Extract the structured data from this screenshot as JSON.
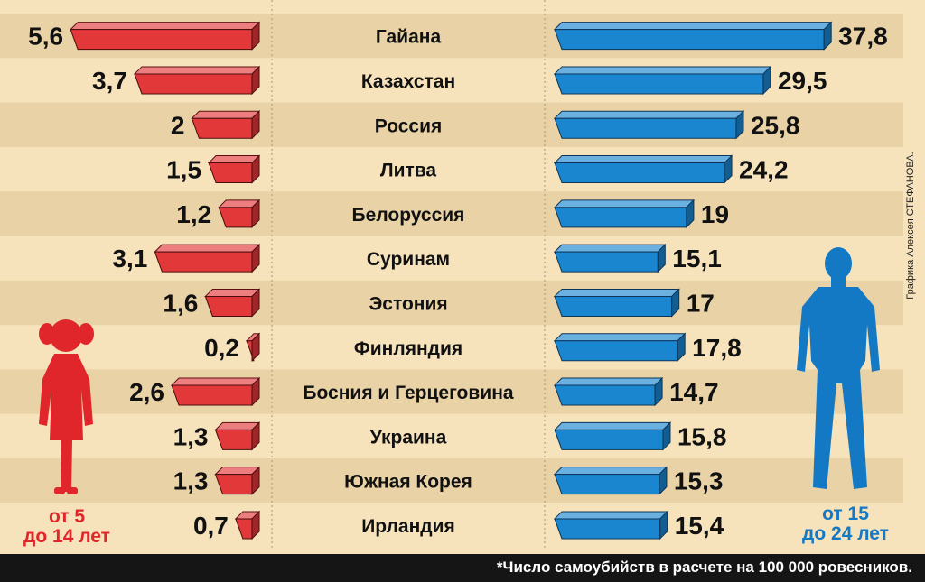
{
  "colors": {
    "background": "#f6e2bb",
    "stripe": "#e8d2a6",
    "left_bar": "#e3383a",
    "right_bar": "#1a86d0",
    "footer": "#151515"
  },
  "chart_data": {
    "type": "bar",
    "categories": [
      "Гайана",
      "Казахстан",
      "Россия",
      "Литва",
      "Белоруссия",
      "Суринам",
      "Эстония",
      "Финляндия",
      "Босния и Герцеговина",
      "Украина",
      "Южная Корея",
      "Ирландия"
    ],
    "series": [
      {
        "name": "от 5 до 14 лет",
        "values": [
          5.6,
          3.7,
          2,
          1.5,
          1.2,
          3.1,
          1.6,
          0.2,
          2.6,
          1.3,
          1.3,
          0.7
        ],
        "labels": [
          "5,6",
          "3,7",
          "2",
          "1,5",
          "1,2",
          "3,1",
          "1,6",
          "0,2",
          "2,6",
          "1,3",
          "1,3",
          "0,7"
        ]
      },
      {
        "name": "от 15 до 24 лет",
        "values": [
          37.8,
          29.5,
          25.8,
          24.2,
          19,
          15.1,
          17,
          17.8,
          14.7,
          15.8,
          15.3,
          15.4
        ],
        "labels": [
          "37,8",
          "29,5",
          "25,8",
          "24,2",
          "19",
          "15,1",
          "17",
          "17,8",
          "14,7",
          "15,8",
          "15,3",
          "15,4"
        ]
      }
    ],
    "orientation": "horizontal, mirrored (left series grows leftward, right series grows rightward)"
  },
  "legend": {
    "left_line1": "от 5",
    "left_line2": "до 14 лет",
    "right_line1": "от 15",
    "right_line2": "до 24 лет"
  },
  "credit": "Графика Алексея СТЕФАНОВА.",
  "footnote": "*Число самоубийств в расчете на 100 000 ровесников.",
  "icons": {
    "left_figure": "girl-silhouette-icon",
    "right_figure": "young-man-silhouette-icon"
  }
}
